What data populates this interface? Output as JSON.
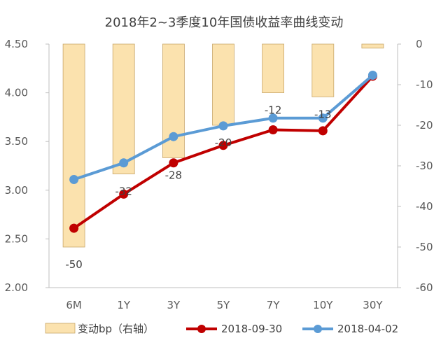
{
  "chart_data": {
    "type": "bar",
    "title": "2018年2~3季度10年国债收益率曲线变动",
    "categories": [
      "6M",
      "1Y",
      "3Y",
      "5Y",
      "7Y",
      "10Y",
      "30Y"
    ],
    "y_left": {
      "range": [
        2.0,
        4.5
      ],
      "ticks": [
        "2.00",
        "2.50",
        "3.00",
        "3.50",
        "4.00",
        "4.50"
      ]
    },
    "y_right": {
      "range": [
        -60,
        0
      ],
      "ticks": [
        "0",
        "-10",
        "-20",
        "-30",
        "-40",
        "-50",
        "-60"
      ],
      "inverted": true
    },
    "series": [
      {
        "name": "变动bp（右轴）",
        "type": "bar",
        "axis": "right",
        "color": "#fbe2ae",
        "edge_color": "#c9a76a",
        "values": [
          -50,
          -32,
          -28,
          -20,
          -12,
          -13,
          -1
        ],
        "labels": [
          "-50",
          "-32",
          "-28",
          "-20",
          "-12",
          "-13",
          ""
        ]
      },
      {
        "name": "2018-09-30",
        "type": "line",
        "axis": "left",
        "color": "#c00000",
        "values": [
          2.61,
          2.96,
          3.28,
          3.46,
          3.62,
          3.61,
          4.17
        ]
      },
      {
        "name": "2018-04-02",
        "type": "line",
        "axis": "left",
        "color": "#5b9bd5",
        "values": [
          3.11,
          3.28,
          3.55,
          3.66,
          3.74,
          3.74,
          4.18
        ]
      }
    ],
    "grid": false,
    "legend_position": "bottom"
  }
}
